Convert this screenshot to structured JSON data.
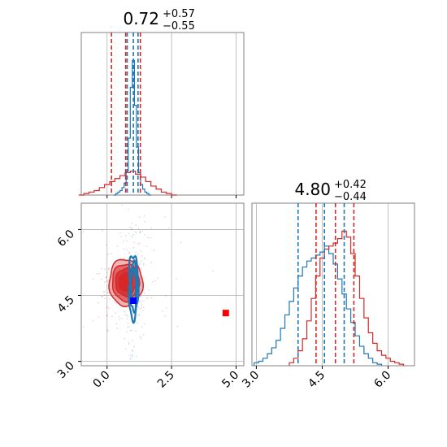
{
  "chart_data": [
    {
      "type": "histogram",
      "panel": "marginal-param1",
      "title": {
        "value": "0.72",
        "plus": "+0.57",
        "minus": "−0.55"
      },
      "xlim": [
        -1.0,
        5.3
      ],
      "grid": true,
      "series": [
        {
          "color": "#1f77b4",
          "bin_centers": [
            0.3,
            0.38,
            0.46,
            0.54,
            0.62,
            0.7,
            0.78,
            0.86,
            0.94,
            1.02,
            1.1,
            1.18,
            1.26,
            1.34,
            1.42,
            1.5,
            1.58,
            1.66
          ],
          "relative_heights": [
            0.0,
            0.01,
            0.02,
            0.03,
            0.05,
            0.08,
            0.16,
            0.38,
            0.72,
            0.9,
            0.6,
            0.32,
            0.15,
            0.07,
            0.04,
            0.02,
            0.01,
            0.0
          ],
          "quantiles": [
            0.78,
            1.02,
            1.2
          ]
        },
        {
          "color": "#d62728",
          "bin_centers": [
            -1.0,
            -0.8,
            -0.6,
            -0.4,
            -0.2,
            0.0,
            0.2,
            0.4,
            0.6,
            0.8,
            1.0,
            1.2,
            1.4,
            1.6,
            1.8,
            2.0,
            2.2,
            2.4,
            2.6
          ],
          "relative_heights": [
            0.0,
            0.01,
            0.02,
            0.03,
            0.05,
            0.07,
            0.09,
            0.11,
            0.13,
            0.15,
            0.16,
            0.14,
            0.12,
            0.09,
            0.06,
            0.04,
            0.02,
            0.01,
            0.0
          ],
          "quantiles": [
            0.17,
            0.72,
            1.29
          ]
        }
      ]
    },
    {
      "type": "scatter",
      "panel": "joint",
      "xlim": [
        -1.0,
        5.3
      ],
      "ylim": [
        2.9,
        6.6
      ],
      "xticks": [
        "0.0",
        "2.5",
        "5.0"
      ],
      "yticks": [
        "3.0",
        "4.5",
        "6.0"
      ],
      "grid": true,
      "contours": [
        {
          "color": "#d62728",
          "center": [
            0.72,
            4.8
          ],
          "spread": [
            0.62,
            0.48
          ],
          "levels": [
            1.0,
            0.8,
            0.6,
            0.4
          ]
        },
        {
          "color": "#1f77b4",
          "center": [
            1.02,
            4.7
          ],
          "spread": [
            0.17,
            0.7
          ],
          "levels": [
            1.0,
            0.75,
            0.5
          ]
        }
      ],
      "markers": [
        {
          "color": "#d62728",
          "x": 0.72,
          "y": 4.8
        },
        {
          "color": "#0000ff",
          "x": 1.02,
          "y": 4.38
        },
        {
          "color": "#ff0000",
          "x": 4.6,
          "y": 4.1
        }
      ]
    },
    {
      "type": "histogram",
      "panel": "marginal-param2",
      "title": {
        "value": "4.80",
        "plus": "+0.42",
        "minus": "−0.44"
      },
      "xlim": [
        2.9,
        6.6
      ],
      "xticks": [
        "3.0",
        "4.5",
        "6.0"
      ],
      "grid": true,
      "series": [
        {
          "color": "#1f77b4",
          "bin_centers": [
            3.0,
            3.1,
            3.2,
            3.3,
            3.4,
            3.5,
            3.6,
            3.7,
            3.8,
            3.9,
            4.0,
            4.1,
            4.2,
            4.3,
            4.4,
            4.5,
            4.6,
            4.7,
            4.8,
            4.9,
            5.0,
            5.1,
            5.2,
            5.3,
            5.4,
            5.5,
            5.6,
            5.7,
            5.8
          ],
          "relative_heights": [
            0.02,
            0.03,
            0.05,
            0.08,
            0.12,
            0.17,
            0.25,
            0.34,
            0.43,
            0.52,
            0.6,
            0.66,
            0.7,
            0.72,
            0.74,
            0.76,
            0.8,
            0.75,
            0.68,
            0.58,
            0.48,
            0.38,
            0.29,
            0.2,
            0.13,
            0.08,
            0.05,
            0.02,
            0.01
          ],
          "quantiles": [
            3.95,
            4.55,
            5.0
          ]
        },
        {
          "color": "#d62728",
          "bin_centers": [
            3.8,
            3.9,
            4.0,
            4.1,
            4.2,
            4.3,
            4.4,
            4.5,
            4.6,
            4.7,
            4.8,
            4.9,
            5.0,
            5.1,
            5.2,
            5.3,
            5.4,
            5.5,
            5.6,
            5.7,
            5.8,
            5.9,
            6.0,
            6.1,
            6.2,
            6.3
          ],
          "relative_heights": [
            0.02,
            0.05,
            0.1,
            0.18,
            0.3,
            0.45,
            0.6,
            0.72,
            0.78,
            0.8,
            0.82,
            0.85,
            0.9,
            0.86,
            0.75,
            0.6,
            0.45,
            0.32,
            0.22,
            0.15,
            0.1,
            0.07,
            0.05,
            0.03,
            0.02,
            0.01
          ],
          "quantiles": [
            4.36,
            4.8,
            5.22
          ]
        }
      ]
    }
  ]
}
